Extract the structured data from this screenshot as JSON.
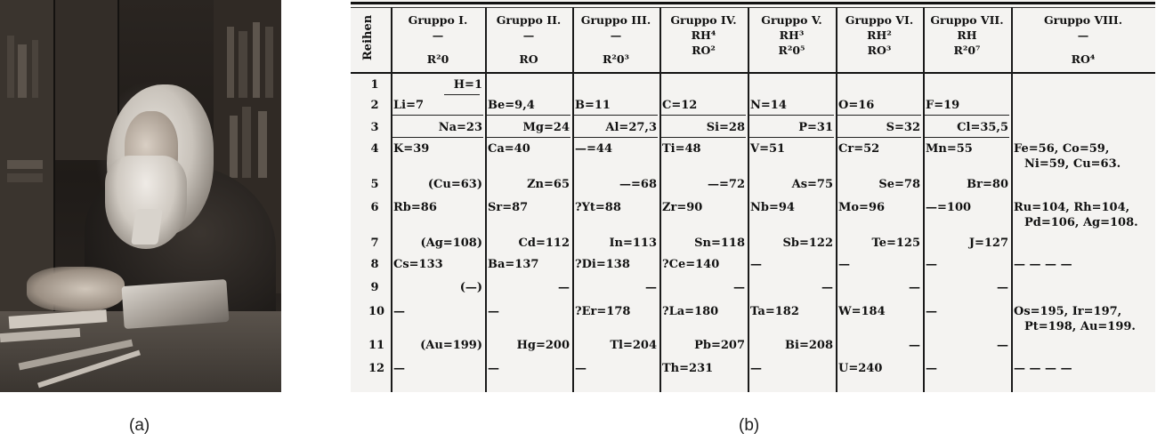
{
  "captions": {
    "a": "(a)",
    "b": "(b)"
  },
  "table": {
    "row_header": "Reihen",
    "groups": [
      {
        "name": "Gruppo I.",
        "dash": "—",
        "hydride": "",
        "oxide": "R²0"
      },
      {
        "name": "Gruppo II.",
        "dash": "—",
        "hydride": "",
        "oxide": "RO"
      },
      {
        "name": "Gruppo III.",
        "dash": "—",
        "hydride": "",
        "oxide": "R²0³"
      },
      {
        "name": "Gruppo IV.",
        "dash": "",
        "hydride": "RH⁴",
        "oxide": "RO²"
      },
      {
        "name": "Gruppo V.",
        "dash": "",
        "hydride": "RH³",
        "oxide": "R²0⁵"
      },
      {
        "name": "Gruppo VI.",
        "dash": "",
        "hydride": "RH²",
        "oxide": "RO³"
      },
      {
        "name": "Gruppo VII.",
        "dash": "",
        "hydride": "RH",
        "oxide": "R²0⁷"
      },
      {
        "name": "Gruppo VIII.",
        "dash": "—",
        "hydride": "",
        "oxide": "RO⁴"
      }
    ],
    "rows": [
      {
        "n": "1",
        "cells": [
          "H=1",
          "",
          "",
          "",
          "",
          "",
          "",
          ""
        ]
      },
      {
        "n": "2",
        "cells": [
          "Li=7",
          "Be=9,4",
          "B=11",
          "C=12",
          "N=14",
          "O=16",
          "F=19",
          ""
        ]
      },
      {
        "n": "3",
        "cells": [
          "Na=23",
          "Mg=24",
          "Al=27,3",
          "Si=28",
          "P=31",
          "S=32",
          "Cl=35,5",
          ""
        ]
      },
      {
        "n": "4",
        "cells": [
          "K=39",
          "Ca=40",
          "—=44",
          "Ti=48",
          "V=51",
          "Cr=52",
          "Mn=55",
          "Fe=56, Co=59,|Ni=59, Cu=63."
        ]
      },
      {
        "n": "5",
        "cells": [
          "(Cu=63)",
          "Zn=65",
          "—=68",
          "—=72",
          "As=75",
          "Se=78",
          "Br=80",
          ""
        ]
      },
      {
        "n": "6",
        "cells": [
          "Rb=86",
          "Sr=87",
          "?Yt=88",
          "Zr=90",
          "Nb=94",
          "Mo=96",
          "—=100",
          "Ru=104, Rh=104,|Pd=106, Ag=108."
        ]
      },
      {
        "n": "7",
        "cells": [
          "(Ag=108)",
          "Cd=112",
          "In=113",
          "Sn=118",
          "Sb=122",
          "Te=125",
          "J=127",
          ""
        ]
      },
      {
        "n": "8",
        "cells": [
          "Cs=133",
          "Ba=137",
          "?Di=138",
          "?Ce=140",
          "—",
          "—",
          "—",
          "— — — —"
        ]
      },
      {
        "n": "9",
        "cells": [
          "(—)",
          "—",
          "—",
          "—",
          "—",
          "—",
          "—",
          ""
        ]
      },
      {
        "n": "10",
        "cells": [
          "—",
          "—",
          "?Er=178",
          "?La=180",
          "Ta=182",
          "W=184",
          "—",
          "Os=195, Ir=197,|Pt=198, Au=199."
        ]
      },
      {
        "n": "11",
        "cells": [
          "(Au=199)",
          "Hg=200",
          "Tl=204",
          "Pb=207",
          "Bi=208",
          "—",
          "—",
          ""
        ]
      },
      {
        "n": "12",
        "cells": [
          "—",
          "—",
          "—",
          "Th=231",
          "—",
          "U=240",
          "—",
          "— — — —"
        ]
      }
    ]
  }
}
